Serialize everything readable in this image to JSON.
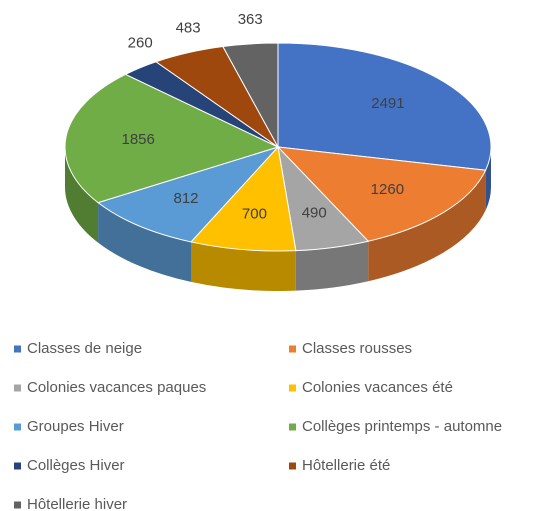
{
  "chart_data": {
    "type": "pie3d",
    "categories": [
      "Classes de neige",
      "Classes rousses",
      "Colonies vacances paques",
      "Colonies vacances été",
      "Groupes Hiver",
      "Collèges printemps - automne",
      "Collèges Hiver",
      "Hôtellerie été",
      "Hôtellerie hiver"
    ],
    "values": [
      2491,
      1260,
      490,
      700,
      812,
      1856,
      260,
      483,
      363
    ],
    "colors": [
      "#4472c4",
      "#ed7d31",
      "#a5a5a5",
      "#ffc000",
      "#5b9bd5",
      "#70ad47",
      "#264478",
      "#9e480e",
      "#636363"
    ],
    "legend": "bottom"
  }
}
